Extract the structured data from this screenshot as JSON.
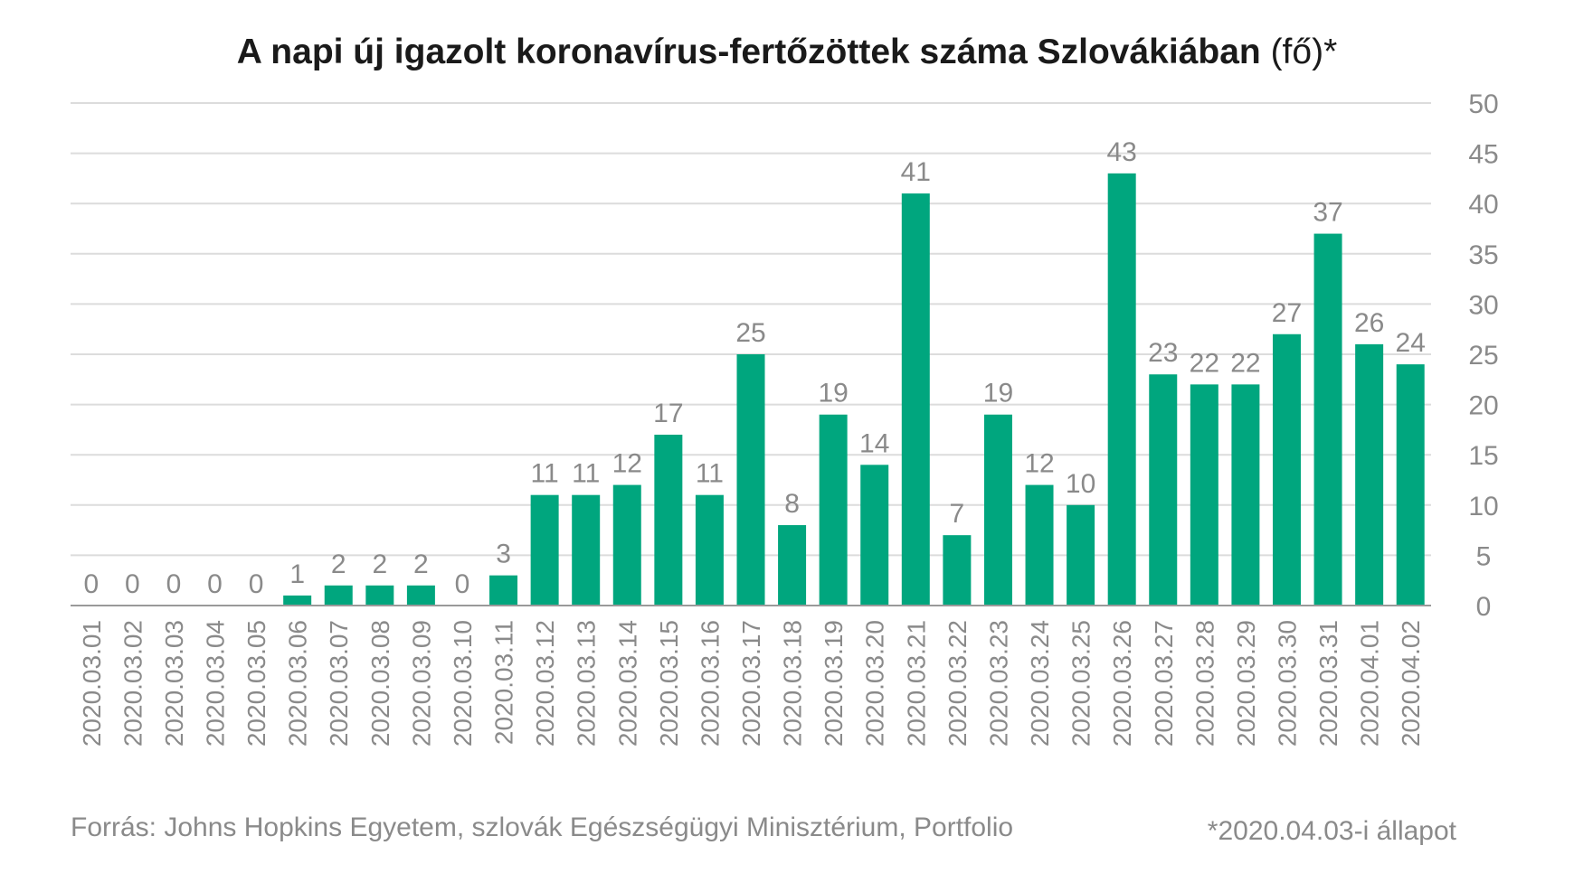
{
  "chart_data": {
    "type": "bar",
    "title_bold": "A napi új igazolt koronavírus-fertőzöttek száma Szlovákiában",
    "title_unit": " (fő)*",
    "categories": [
      "2020.03.01",
      "2020.03.02",
      "2020.03.03",
      "2020.03.04",
      "2020.03.05",
      "2020.03.06",
      "2020.03.07",
      "2020.03.08",
      "2020.03.09",
      "2020.03.10",
      "2020.03.11",
      "2020.03.12",
      "2020.03.13",
      "2020.03.14",
      "2020.03.15",
      "2020.03.16",
      "2020.03.17",
      "2020.03.18",
      "2020.03.19",
      "2020.03.20",
      "2020.03.21",
      "2020.03.22",
      "2020.03.23",
      "2020.03.24",
      "2020.03.25",
      "2020.03.26",
      "2020.03.27",
      "2020.03.28",
      "2020.03.29",
      "2020.03.30",
      "2020.03.31",
      "2020.04.01",
      "2020.04.02"
    ],
    "values": [
      0,
      0,
      0,
      0,
      0,
      1,
      2,
      2,
      2,
      0,
      3,
      11,
      11,
      12,
      17,
      11,
      25,
      8,
      19,
      14,
      41,
      7,
      19,
      12,
      10,
      43,
      23,
      22,
      22,
      27,
      37,
      26,
      24
    ],
    "ylim": [
      0,
      50
    ],
    "yticks": [
      0,
      5,
      10,
      15,
      20,
      25,
      30,
      35,
      40,
      45,
      50
    ],
    "y_axis_side": "right",
    "grid": true,
    "bar_color": "#00a67e",
    "source": "Forrás: Johns Hopkins Egyetem, szlovák Egészségügyi Minisztérium, Portfolio",
    "note": "*2020.04.03-i állapot"
  }
}
